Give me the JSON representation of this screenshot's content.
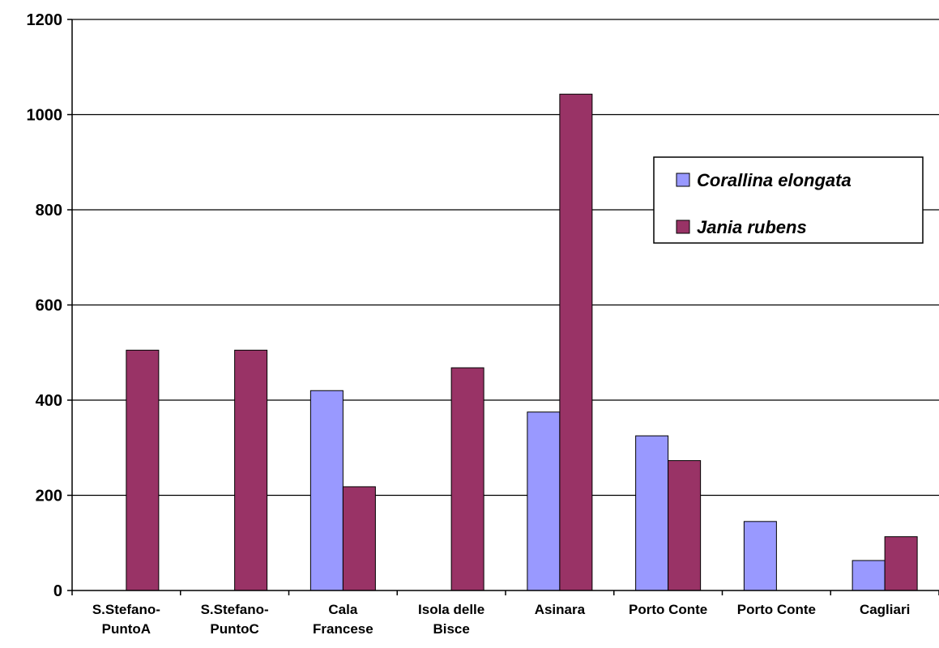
{
  "chart_data": {
    "type": "bar",
    "categories": [
      [
        "S.Stefano-",
        "PuntoA"
      ],
      [
        "S.Stefano-",
        "PuntoC"
      ],
      [
        "Cala",
        "Francese"
      ],
      [
        "Isola delle",
        "Bisce"
      ],
      [
        "Asinara"
      ],
      [
        "Porto Conte"
      ],
      [
        "Porto Conte"
      ],
      [
        "Cagliari"
      ]
    ],
    "series": [
      {
        "name": "Corallina elongata",
        "color": "#9999ff",
        "values": [
          0,
          0,
          420,
          0,
          375,
          325,
          145,
          63
        ]
      },
      {
        "name": "Jania rubens",
        "color": "#993366",
        "values": [
          505,
          505,
          218,
          468,
          1043,
          273,
          0,
          113
        ]
      }
    ],
    "yticks": [
      0,
      200,
      400,
      600,
      800,
      1000,
      1200
    ],
    "ylim": [
      0,
      1200
    ],
    "grid": true,
    "legend_position": "right"
  }
}
